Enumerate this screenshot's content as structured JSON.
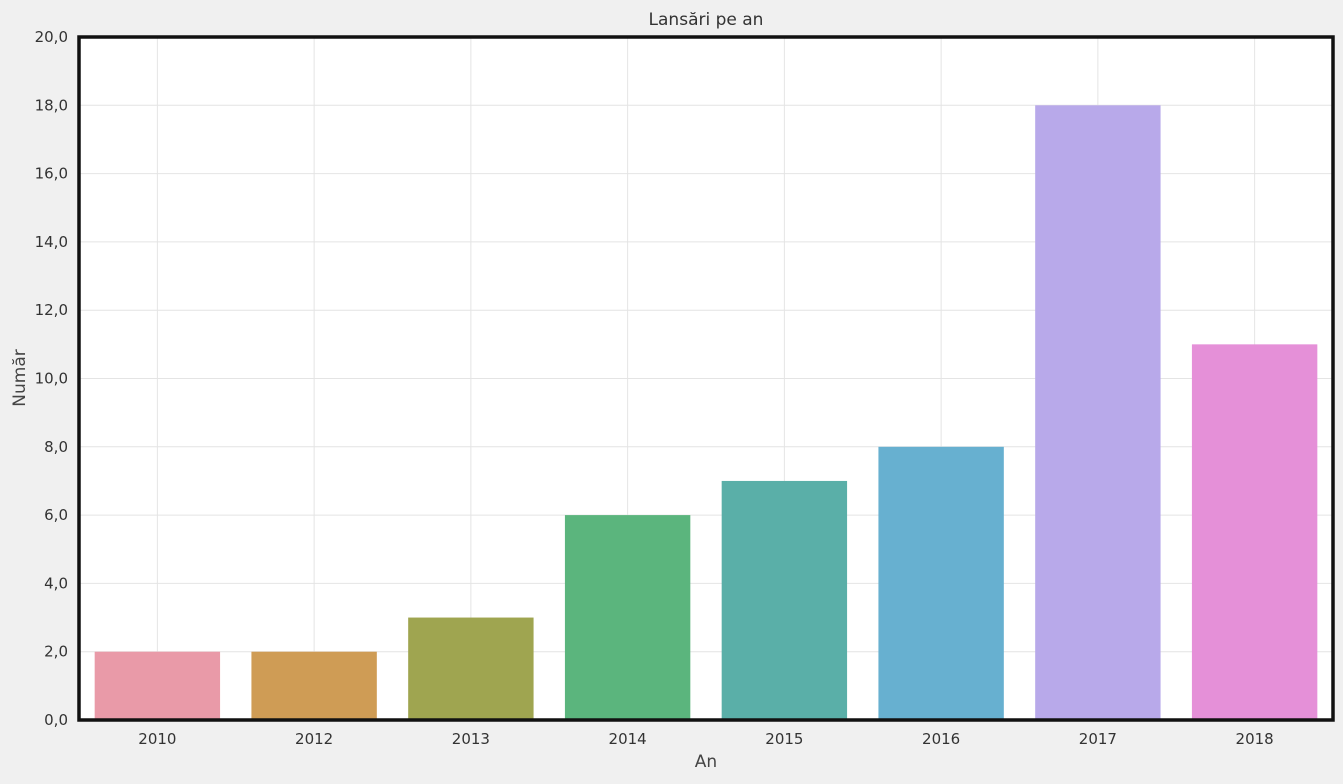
{
  "chart_data": {
    "type": "bar",
    "title": "Lansări pe an",
    "xlabel": "An",
    "ylabel": "Număr",
    "categories": [
      "2010",
      "2012",
      "2013",
      "2014",
      "2015",
      "2016",
      "2017",
      "2018"
    ],
    "values": [
      2,
      2,
      3,
      6,
      7,
      8,
      18,
      11
    ],
    "colors": [
      "#e99aa8",
      "#cf9c55",
      "#9fa550",
      "#5bb57d",
      "#5aafa8",
      "#67b0d0",
      "#b8a9ea",
      "#e590d8"
    ],
    "ylim": [
      0,
      20
    ],
    "yticks": [
      "0,0",
      "2,0",
      "4,0",
      "6,0",
      "8,0",
      "10,0",
      "12,0",
      "14,0",
      "16,0",
      "18,0",
      "20,0"
    ],
    "grid": true,
    "legend": "none"
  }
}
